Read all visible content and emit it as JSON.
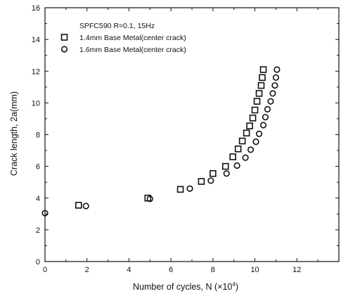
{
  "chart_data": {
    "type": "scatter",
    "title": "",
    "xlabel": "Number of cycles, N (×10",
    "xlabel_exp": "4",
    "xlabel_close": ")",
    "ylabel": "Crack length, 2a(mm)",
    "xlim": [
      0,
      14
    ],
    "ylim": [
      0,
      16
    ],
    "xticks": [
      0,
      2,
      4,
      6,
      8,
      10,
      12
    ],
    "yticks": [
      0,
      2,
      4,
      6,
      8,
      10,
      12,
      14,
      16
    ],
    "grid": false,
    "legend_title": "SPFC590 R=0.1, 15Hz",
    "legend_position": "top-left",
    "series": [
      {
        "name": "1.4mm Base Metal(center crack)",
        "marker": "square",
        "points": [
          [
            1.6,
            3.55
          ],
          [
            4.9,
            4.0
          ],
          [
            6.45,
            4.55
          ],
          [
            7.45,
            5.05
          ],
          [
            8.0,
            5.55
          ],
          [
            8.6,
            6.0
          ],
          [
            8.95,
            6.6
          ],
          [
            9.2,
            7.1
          ],
          [
            9.4,
            7.6
          ],
          [
            9.6,
            8.1
          ],
          [
            9.75,
            8.55
          ],
          [
            9.9,
            9.05
          ],
          [
            10.0,
            9.55
          ],
          [
            10.1,
            10.1
          ],
          [
            10.2,
            10.6
          ],
          [
            10.3,
            11.1
          ],
          [
            10.35,
            11.6
          ],
          [
            10.4,
            12.1
          ]
        ]
      },
      {
        "name": "1.6mm Base Metal(center crack)",
        "marker": "circle",
        "points": [
          [
            0.0,
            3.05
          ],
          [
            1.95,
            3.5
          ],
          [
            5.0,
            3.95
          ],
          [
            6.9,
            4.6
          ],
          [
            7.9,
            5.1
          ],
          [
            8.65,
            5.55
          ],
          [
            9.15,
            6.05
          ],
          [
            9.55,
            6.55
          ],
          [
            9.8,
            7.05
          ],
          [
            10.05,
            7.55
          ],
          [
            10.2,
            8.05
          ],
          [
            10.4,
            8.6
          ],
          [
            10.5,
            9.1
          ],
          [
            10.6,
            9.6
          ],
          [
            10.75,
            10.1
          ],
          [
            10.85,
            10.6
          ],
          [
            10.95,
            11.1
          ],
          [
            11.0,
            11.6
          ],
          [
            11.05,
            12.1
          ]
        ]
      }
    ]
  }
}
